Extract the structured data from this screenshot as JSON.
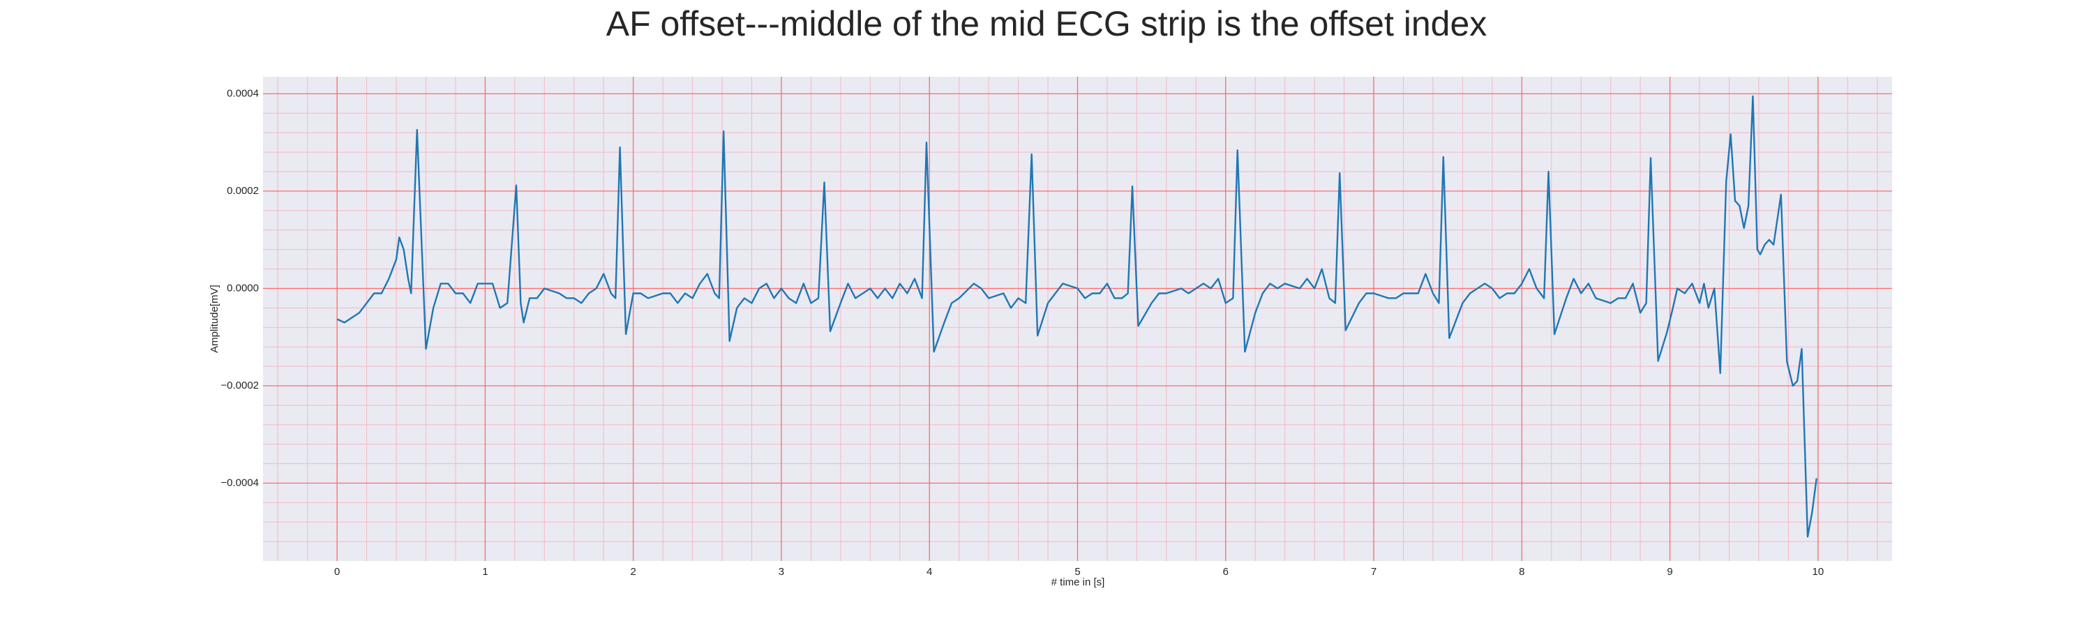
{
  "chart_data": {
    "type": "line",
    "title": "AF offset---middle of the mid ECG strip is the offset index",
    "xlabel": "# time in [s]",
    "ylabel": "Amplitude[mV]",
    "xlim": [
      -0.5,
      10.5
    ],
    "ylim": [
      -0.00056,
      0.000435
    ],
    "xticks": [
      0,
      1,
      2,
      3,
      4,
      5,
      6,
      7,
      8,
      9,
      10
    ],
    "yticks": [
      {
        "value": -0.0004,
        "label": "−0.0004"
      },
      {
        "value": -0.0002,
        "label": "−0.0002"
      },
      {
        "value": 0,
        "label": "0.0000"
      },
      {
        "value": 0.0002,
        "label": "0.0002"
      },
      {
        "value": 0.0004,
        "label": "0.0004"
      }
    ],
    "grid": true,
    "minor_grid": true,
    "grid_color": "#ff6b6b",
    "minor_grid_color": "#f4b8c4",
    "background": "#eaeaf2",
    "series": [
      {
        "color": "#1f77b4",
        "x": [
          0,
          0.05,
          0.1,
          0.15,
          0.2,
          0.25,
          0.3,
          0.35,
          0.4,
          0.42,
          0.45,
          0.48,
          0.5,
          0.54,
          0.57,
          0.6,
          0.65,
          0.7,
          0.75,
          0.8,
          0.85,
          0.9,
          0.95,
          1.0,
          1.05,
          1.1,
          1.15,
          1.21,
          1.24,
          1.26,
          1.3,
          1.35,
          1.4,
          1.5,
          1.55,
          1.6,
          1.65,
          1.7,
          1.75,
          1.8,
          1.85,
          1.88,
          1.91,
          1.95,
          2.0,
          2.05,
          2.1,
          2.2,
          2.25,
          2.3,
          2.35,
          2.4,
          2.45,
          2.5,
          2.55,
          2.58,
          2.61,
          2.65,
          2.7,
          2.75,
          2.8,
          2.85,
          2.9,
          2.95,
          3.0,
          3.05,
          3.1,
          3.15,
          3.2,
          3.25,
          3.29,
          3.33,
          3.4,
          3.45,
          3.5,
          3.55,
          3.6,
          3.65,
          3.7,
          3.75,
          3.8,
          3.85,
          3.9,
          3.95,
          3.98,
          4.03,
          4.1,
          4.15,
          4.2,
          4.3,
          4.35,
          4.4,
          4.5,
          4.55,
          4.6,
          4.65,
          4.69,
          4.73,
          4.8,
          4.85,
          4.9,
          5.0,
          5.05,
          5.1,
          5.15,
          5.2,
          5.25,
          5.3,
          5.34,
          5.37,
          5.41,
          5.5,
          5.55,
          5.6,
          5.7,
          5.75,
          5.8,
          5.85,
          5.9,
          5.95,
          6.0,
          6.05,
          6.08,
          6.13,
          6.2,
          6.25,
          6.3,
          6.35,
          6.4,
          6.5,
          6.55,
          6.6,
          6.65,
          6.7,
          6.74,
          6.77,
          6.81,
          6.9,
          6.95,
          7.0,
          7.1,
          7.15,
          7.2,
          7.3,
          7.35,
          7.4,
          7.44,
          7.47,
          7.51,
          7.6,
          7.65,
          7.7,
          7.75,
          7.8,
          7.85,
          7.9,
          7.95,
          8.0,
          8.05,
          8.1,
          8.15,
          8.18,
          8.22,
          8.3,
          8.35,
          8.4,
          8.45,
          8.5,
          8.6,
          8.65,
          8.7,
          8.75,
          8.8,
          8.84,
          8.87,
          8.92,
          8.98,
          9.02,
          9.05,
          9.1,
          9.15,
          9.2,
          9.23,
          9.26,
          9.3,
          9.34,
          9.38,
          9.41,
          9.44,
          9.47,
          9.5,
          9.53,
          9.56,
          9.59,
          9.61,
          9.64,
          9.67,
          9.7,
          9.75,
          9.79,
          9.83,
          9.86,
          9.89,
          9.93,
          9.96,
          9.99
        ],
        "values": [
          -6.3e-05,
          -7e-05,
          -6e-05,
          -5e-05,
          -3e-05,
          -1e-05,
          -1e-05,
          2e-05,
          6e-05,
          0.000105,
          8e-05,
          2e-05,
          -1e-05,
          0.000326,
          0.0001,
          -0.000124,
          -4e-05,
          1e-05,
          1e-05,
          -1e-05,
          -1e-05,
          -3e-05,
          1e-05,
          1e-05,
          1e-05,
          -4e-05,
          -3e-05,
          0.000212,
          -3e-05,
          -7e-05,
          -2e-05,
          -2e-05,
          0,
          -1e-05,
          -2e-05,
          -2e-05,
          -3e-05,
          -1e-05,
          0,
          3e-05,
          -1e-05,
          -2e-05,
          0.00029,
          -9.4e-05,
          -1e-05,
          -1e-05,
          -2e-05,
          -1e-05,
          -1e-05,
          -3e-05,
          -1e-05,
          -2e-05,
          1e-05,
          3e-05,
          -1e-05,
          -2e-05,
          0.000323,
          -0.000108,
          -4e-05,
          -2e-05,
          -3e-05,
          0,
          1e-05,
          -2e-05,
          0,
          -2e-05,
          -3e-05,
          1e-05,
          -3e-05,
          -2e-05,
          0.000218,
          -8.8e-05,
          -3e-05,
          1e-05,
          -2e-05,
          -1e-05,
          0,
          -2e-05,
          0,
          -2e-05,
          1e-05,
          -1e-05,
          2e-05,
          -2e-05,
          0.0003,
          -0.00013,
          -7e-05,
          -3e-05,
          -2e-05,
          1e-05,
          0,
          -2e-05,
          -1e-05,
          -4e-05,
          -2e-05,
          -3e-05,
          0.000276,
          -9.7e-05,
          -3e-05,
          -1e-05,
          1e-05,
          0,
          -2e-05,
          -1e-05,
          -1e-05,
          1e-05,
          -2e-05,
          -2e-05,
          -1e-05,
          0.00021,
          -7.7e-05,
          -3e-05,
          -1e-05,
          -1e-05,
          0,
          -1e-05,
          0,
          1e-05,
          0,
          2e-05,
          -3e-05,
          -2e-05,
          0.000284,
          -0.00013,
          -5e-05,
          -1e-05,
          1e-05,
          0,
          1e-05,
          0,
          2e-05,
          0,
          4e-05,
          -2e-05,
          -3e-05,
          0.000237,
          -8.6e-05,
          -3e-05,
          -1e-05,
          -1e-05,
          -2e-05,
          -2e-05,
          -1e-05,
          -1e-05,
          3e-05,
          -1e-05,
          -3e-05,
          0.00027,
          -0.000102,
          -3e-05,
          -1e-05,
          0,
          1e-05,
          0,
          -2e-05,
          -1e-05,
          -1e-05,
          1e-05,
          4e-05,
          0,
          -2e-05,
          0.00024,
          -9.4e-05,
          -2e-05,
          2e-05,
          -1e-05,
          1e-05,
          -2e-05,
          -3e-05,
          -2e-05,
          -2e-05,
          1e-05,
          -5e-05,
          -3e-05,
          0.000268,
          -0.000149,
          -9e-05,
          -4e-05,
          0,
          -1e-05,
          1e-05,
          -3e-05,
          1e-05,
          -4e-05,
          0,
          -0.000174,
          0.00022,
          0.000317,
          0.00018,
          0.00017,
          0.000124,
          0.00017,
          0.000395,
          8e-05,
          7e-05,
          9e-05,
          0.0001,
          9e-05,
          0.000193,
          -0.00015,
          -0.0002,
          -0.00019,
          -0.000124,
          -0.00051,
          -0.00046,
          -0.00039
        ]
      }
    ]
  }
}
